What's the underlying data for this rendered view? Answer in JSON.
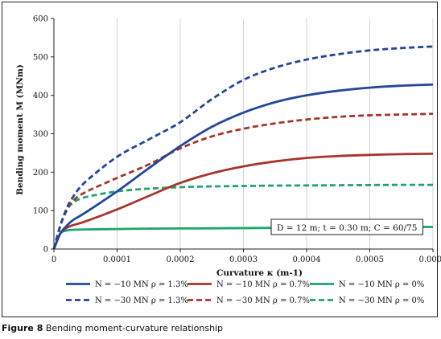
{
  "chart_data": {
    "type": "line",
    "title": "",
    "xlabel": "Curvature κ (m-1)",
    "ylabel": "Bending moment M (MNm)",
    "xlim": [
      0,
      0.0006
    ],
    "ylim": [
      0,
      600
    ],
    "x_ticks": [
      0,
      0.0001,
      0.0002,
      0.0003,
      0.0004,
      0.0005,
      0.0006
    ],
    "x_tick_labels": [
      "0",
      "0.0001",
      "0.0002",
      "0.0003",
      "0.0004",
      "0.0005",
      "0.0006"
    ],
    "y_ticks": [
      0,
      100,
      200,
      300,
      400,
      500,
      600
    ],
    "y_tick_labels": [
      "0",
      "100",
      "200",
      "300",
      "400",
      "500",
      "600"
    ],
    "grid": "vertical",
    "legend_position": "bottom",
    "annotation": "D = 12 m; t = 0.30 m; C = 60/75",
    "series": [
      {
        "name": "N = −10 MN ρ = 1.3%",
        "color": "#23479a",
        "dash": "solid",
        "x": [
          0,
          1e-05,
          2e-05,
          3e-05,
          5e-05,
          0.0001,
          0.00015,
          0.0002,
          0.00025,
          0.0003,
          0.00035,
          0.0004,
          0.00045,
          0.0005,
          0.00055,
          0.0006
        ],
        "y": [
          0,
          40,
          60,
          75,
          95,
          150,
          210,
          268,
          318,
          355,
          382,
          400,
          412,
          420,
          425,
          428
        ]
      },
      {
        "name": "N = −30 MN ρ = 1.3%",
        "color": "#23479a",
        "dash": "dashed",
        "x": [
          0,
          1e-05,
          2e-05,
          3e-05,
          5e-05,
          0.0001,
          0.00015,
          0.0002,
          0.00025,
          0.0003,
          0.00035,
          0.0004,
          0.00045,
          0.0005,
          0.00055,
          0.0006
        ],
        "y": [
          0,
          60,
          105,
          135,
          175,
          240,
          285,
          330,
          390,
          440,
          472,
          493,
          507,
          517,
          523,
          527
        ]
      },
      {
        "name": "N = −10 MN ρ = 0.7%",
        "color": "#a8352b",
        "dash": "solid",
        "x": [
          0,
          1e-05,
          2e-05,
          3e-05,
          5e-05,
          0.0001,
          0.00015,
          0.0002,
          0.00025,
          0.0003,
          0.00035,
          0.0004,
          0.00045,
          0.0005,
          0.00055,
          0.0006
        ],
        "y": [
          0,
          40,
          55,
          62,
          72,
          103,
          138,
          172,
          197,
          215,
          228,
          237,
          242,
          245,
          247,
          248
        ]
      },
      {
        "name": "N = −30 MN ρ = 0.7%",
        "color": "#a8352b",
        "dash": "dashed",
        "x": [
          0,
          1e-05,
          2e-05,
          3e-05,
          5e-05,
          0.0001,
          0.00015,
          0.0002,
          0.00025,
          0.0003,
          0.00035,
          0.0004,
          0.00045,
          0.0005,
          0.00055,
          0.0006
        ],
        "y": [
          0,
          60,
          100,
          125,
          148,
          185,
          220,
          262,
          293,
          313,
          327,
          337,
          344,
          348,
          350,
          352
        ]
      },
      {
        "name": "N = −10 MN ρ = 0%",
        "color": "#1ea56b",
        "dash": "solid",
        "x": [
          0,
          1e-05,
          2e-05,
          3e-05,
          5e-05,
          0.0001,
          0.00015,
          0.0002,
          0.00025,
          0.0003,
          0.00035,
          0.0004,
          0.00045,
          0.0005,
          0.00055,
          0.0006
        ],
        "y": [
          0,
          40,
          48,
          50,
          51,
          52,
          53,
          53.5,
          54,
          54.5,
          55,
          55.5,
          56,
          56.5,
          57,
          57.5
        ]
      },
      {
        "name": "N = −30 MN ρ = 0%",
        "color": "#1ea56b",
        "dash": "dashed",
        "x": [
          0,
          1e-05,
          2e-05,
          3e-05,
          5e-05,
          0.0001,
          0.00015,
          0.0002,
          0.00025,
          0.0003,
          0.00035,
          0.0004,
          0.00045,
          0.0005,
          0.00055,
          0.0006
        ],
        "y": [
          0,
          60,
          100,
          120,
          135,
          150,
          157,
          161,
          163,
          164,
          165,
          165.5,
          166,
          166.5,
          167,
          167
        ]
      }
    ]
  },
  "caption": {
    "label": "Figure 8",
    "text": "Bending moment-curvature relationship"
  }
}
